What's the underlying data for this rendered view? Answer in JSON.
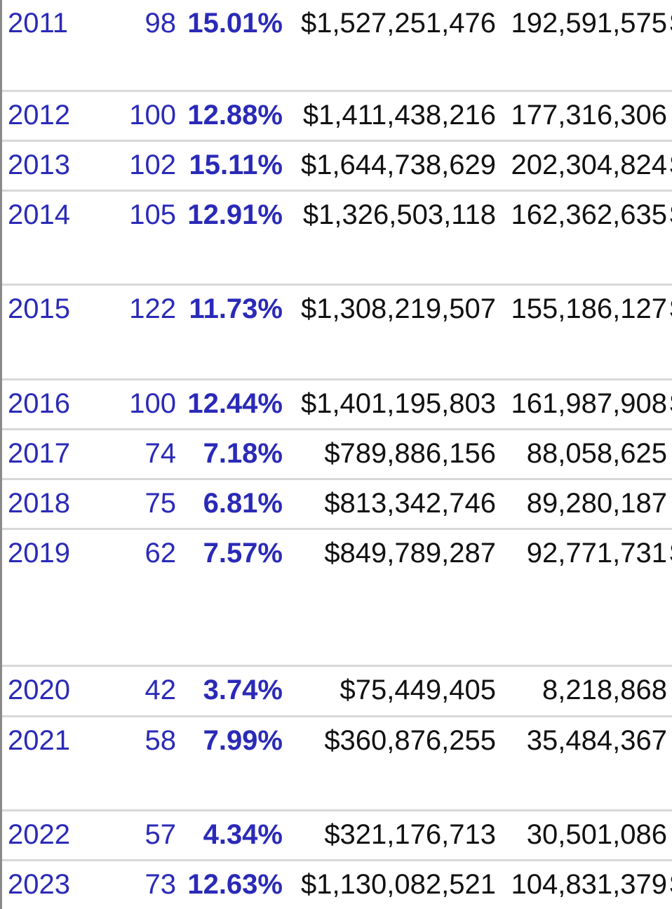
{
  "rows": [
    {
      "year": "2011",
      "films": "98",
      "pct": "15.01%",
      "gross": "$1,527,251,476",
      "tickets": "192,591,575",
      "next": "$"
    },
    {
      "year": "2012",
      "films": "100",
      "pct": "12.88%",
      "gross": "$1,411,438,216",
      "tickets": "177,316,306",
      "next": ""
    },
    {
      "year": "2013",
      "films": "102",
      "pct": "15.11%",
      "gross": "$1,644,738,629",
      "tickets": "202,304,824",
      "next": "$"
    },
    {
      "year": "2014",
      "films": "105",
      "pct": "12.91%",
      "gross": "$1,326,503,118",
      "tickets": "162,362,635",
      "next": "$"
    },
    {
      "year": "2015",
      "films": "122",
      "pct": "11.73%",
      "gross": "$1,308,219,507",
      "tickets": "155,186,127",
      "next": "$"
    },
    {
      "year": "2016",
      "films": "100",
      "pct": "12.44%",
      "gross": "$1,401,195,803",
      "tickets": "161,987,908",
      "next": "$"
    },
    {
      "year": "2017",
      "films": "74",
      "pct": "7.18%",
      "gross": "$789,886,156",
      "tickets": "88,058,625",
      "next": ""
    },
    {
      "year": "2018",
      "films": "75",
      "pct": "6.81%",
      "gross": "$813,342,746",
      "tickets": "89,280,187",
      "next": ""
    },
    {
      "year": "2019",
      "films": "62",
      "pct": "7.57%",
      "gross": "$849,789,287",
      "tickets": "92,771,731",
      "next": "$"
    },
    {
      "year": "2020",
      "films": "42",
      "pct": "3.74%",
      "gross": "$75,449,405",
      "tickets": "8,218,868",
      "next": ""
    },
    {
      "year": "2021",
      "films": "58",
      "pct": "7.99%",
      "gross": "$360,876,255",
      "tickets": "35,484,367",
      "next": ""
    },
    {
      "year": "2022",
      "films": "57",
      "pct": "4.34%",
      "gross": "$321,176,713",
      "tickets": "30,501,086",
      "next": ""
    },
    {
      "year": "2023",
      "films": "73",
      "pct": "12.63%",
      "gross": "$1,130,082,521",
      "tickets": "104,831,379",
      "next": "$"
    }
  ]
}
